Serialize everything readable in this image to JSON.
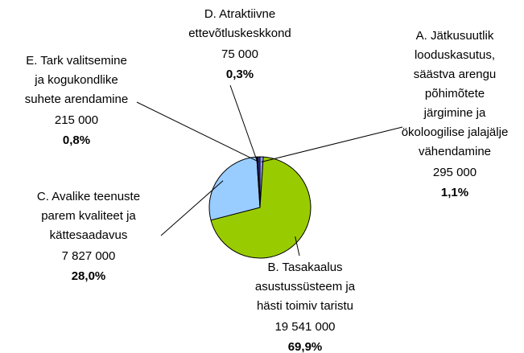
{
  "chart_data": {
    "type": "pie",
    "categories": [
      [
        "A. Jätkusuutlik",
        "looduskasutus,",
        "säästva arengu",
        "põhimõtete",
        "järgimine ja",
        "ökoloogilise jalajälje",
        "vähendamine"
      ],
      [
        "B. Tasakaalus",
        "asustussüsteem ja",
        "hästi toimiv taristu"
      ],
      [
        "C. Avalike teenuste",
        "parem kvaliteet ja",
        "kättesaadavus"
      ],
      [
        "D. Atraktiivne",
        "ettevõtluskeskkond"
      ],
      [
        "E. Tark valitsemine",
        "ja kogukondlike",
        "suhete arendamine"
      ]
    ],
    "values": [
      295000,
      19541000,
      7827000,
      75000,
      215000
    ],
    "value_labels": [
      "295 000",
      "19 541 000",
      "7 827 000",
      "75 000",
      "215 000"
    ],
    "percents": [
      1.1,
      69.9,
      28.0,
      0.3,
      0.8
    ],
    "percent_labels": [
      "1,1%",
      "69,9%",
      "28,0%",
      "0,3%",
      "0,8%"
    ],
    "colors": [
      "#9999ff",
      "#99cc00",
      "#99ccff",
      "#ffffcc",
      "#333399"
    ]
  }
}
